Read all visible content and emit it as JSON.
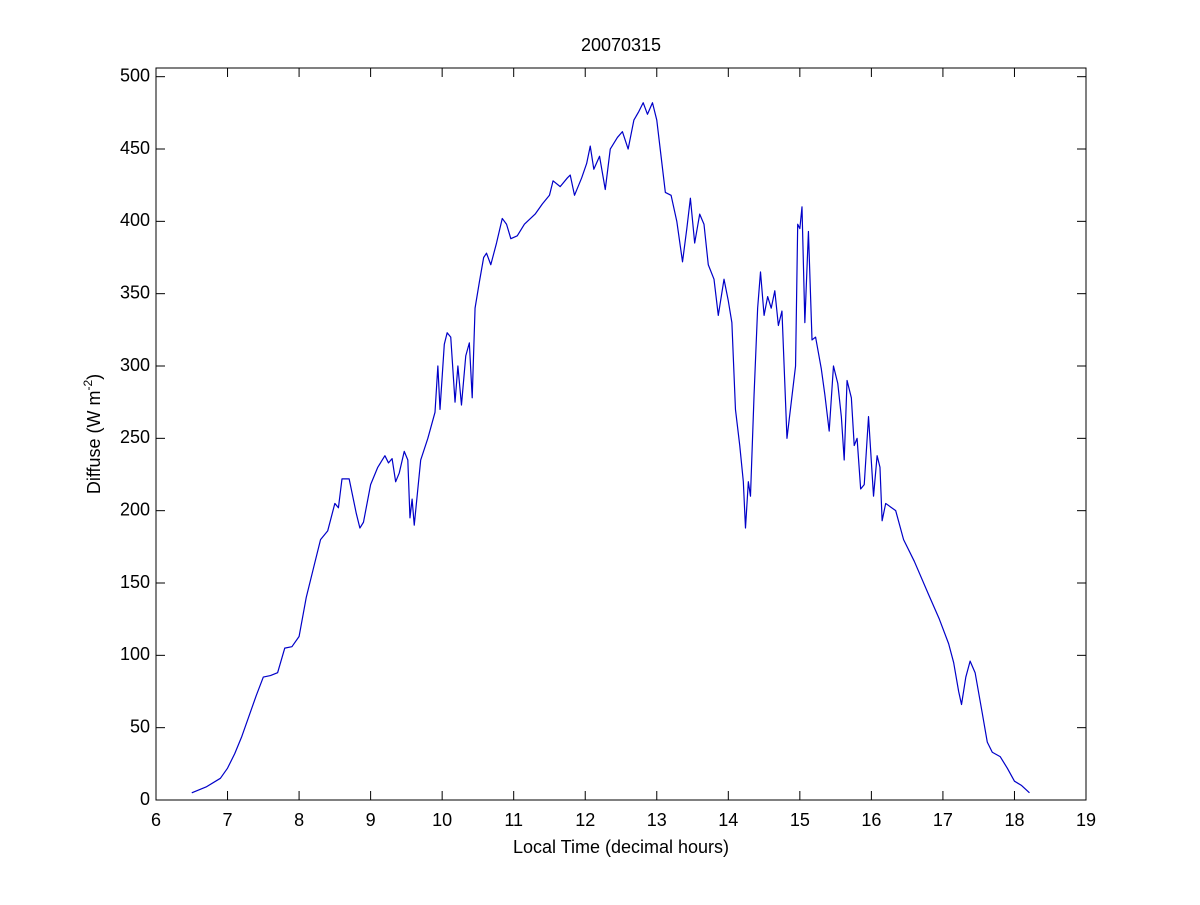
{
  "chart_data": {
    "type": "line",
    "title": "20070315",
    "xlabel": "Local Time (decimal hours)",
    "ylabel_parts": [
      "Diffuse (W m",
      "-2",
      ")"
    ],
    "xlim": [
      6,
      19
    ],
    "ylim": [
      0,
      506
    ],
    "xticks": [
      6,
      7,
      8,
      9,
      10,
      11,
      12,
      13,
      14,
      15,
      16,
      17,
      18,
      19
    ],
    "yticks": [
      0,
      50,
      100,
      150,
      200,
      250,
      300,
      350,
      400,
      450,
      500
    ],
    "grid": false,
    "x": [
      6.5,
      6.7,
      6.9,
      7.0,
      7.1,
      7.2,
      7.3,
      7.4,
      7.5,
      7.6,
      7.7,
      7.8,
      7.9,
      8.0,
      8.1,
      8.2,
      8.3,
      8.4,
      8.5,
      8.55,
      8.6,
      8.7,
      8.8,
      8.85,
      8.9,
      9.0,
      9.1,
      9.2,
      9.25,
      9.3,
      9.35,
      9.4,
      9.47,
      9.52,
      9.55,
      9.58,
      9.61,
      9.7,
      9.8,
      9.9,
      9.94,
      9.97,
      10.03,
      10.07,
      10.12,
      10.18,
      10.22,
      10.27,
      10.33,
      10.38,
      10.42,
      10.46,
      10.52,
      10.58,
      10.62,
      10.68,
      10.76,
      10.84,
      10.9,
      10.96,
      11.05,
      11.15,
      11.3,
      11.4,
      11.5,
      11.55,
      11.65,
      11.75,
      11.79,
      11.85,
      11.95,
      12.02,
      12.07,
      12.12,
      12.2,
      12.28,
      12.35,
      12.45,
      12.52,
      12.6,
      12.68,
      12.75,
      12.81,
      12.87,
      12.94,
      13.0,
      13.06,
      13.12,
      13.2,
      13.28,
      13.36,
      13.42,
      13.47,
      13.53,
      13.6,
      13.66,
      13.72,
      13.8,
      13.86,
      13.94,
      14.0,
      14.05,
      14.1,
      14.16,
      14.21,
      14.24,
      14.28,
      14.31,
      14.36,
      14.41,
      14.45,
      14.5,
      14.55,
      14.6,
      14.65,
      14.7,
      14.75,
      14.82,
      14.88,
      14.94,
      14.97,
      15.0,
      15.03,
      15.07,
      15.12,
      15.17,
      15.22,
      15.3,
      15.35,
      15.41,
      15.47,
      15.53,
      15.58,
      15.62,
      15.66,
      15.72,
      15.76,
      15.8,
      15.85,
      15.9,
      15.96,
      16.03,
      16.08,
      16.12,
      16.15,
      16.2,
      16.34,
      16.45,
      16.6,
      16.8,
      16.95,
      17.08,
      17.15,
      17.22,
      17.26,
      17.32,
      17.38,
      17.45,
      17.55,
      17.62,
      17.69,
      17.8,
      17.9,
      18.0,
      18.1,
      18.21
    ],
    "series": [
      {
        "color": "#0000c8",
        "values": [
          5,
          9,
          15,
          22,
          32,
          44,
          58,
          72,
          85,
          86,
          88,
          105,
          106,
          113,
          140,
          160,
          180,
          186,
          205,
          202,
          222,
          222,
          198,
          188,
          192,
          218,
          230,
          238,
          233,
          236,
          220,
          226,
          241,
          235,
          195,
          208,
          190,
          235,
          250,
          268,
          300,
          270,
          315,
          323,
          320,
          275,
          300,
          273,
          307,
          316,
          278,
          340,
          358,
          375,
          378,
          370,
          385,
          402,
          398,
          388,
          390,
          398,
          405,
          412,
          418,
          428,
          424,
          430,
          432,
          418,
          430,
          440,
          452,
          436,
          445,
          422,
          450,
          458,
          462,
          450,
          470,
          476,
          482,
          474,
          482,
          470,
          445,
          420,
          418,
          400,
          372,
          395,
          416,
          385,
          405,
          398,
          370,
          360,
          335,
          360,
          345,
          330,
          270,
          245,
          220,
          188,
          220,
          210,
          280,
          340,
          365,
          335,
          348,
          340,
          352,
          328,
          338,
          250,
          275,
          300,
          398,
          395,
          410,
          330,
          393,
          318,
          320,
          298,
          280,
          255,
          300,
          288,
          265,
          235,
          290,
          278,
          245,
          250,
          215,
          218,
          265,
          210,
          238,
          230,
          193,
          205,
          200,
          180,
          165,
          142,
          125,
          108,
          95,
          75,
          66,
          85,
          96,
          88,
          60,
          40,
          33,
          30,
          22,
          13,
          10,
          5
        ]
      }
    ]
  }
}
